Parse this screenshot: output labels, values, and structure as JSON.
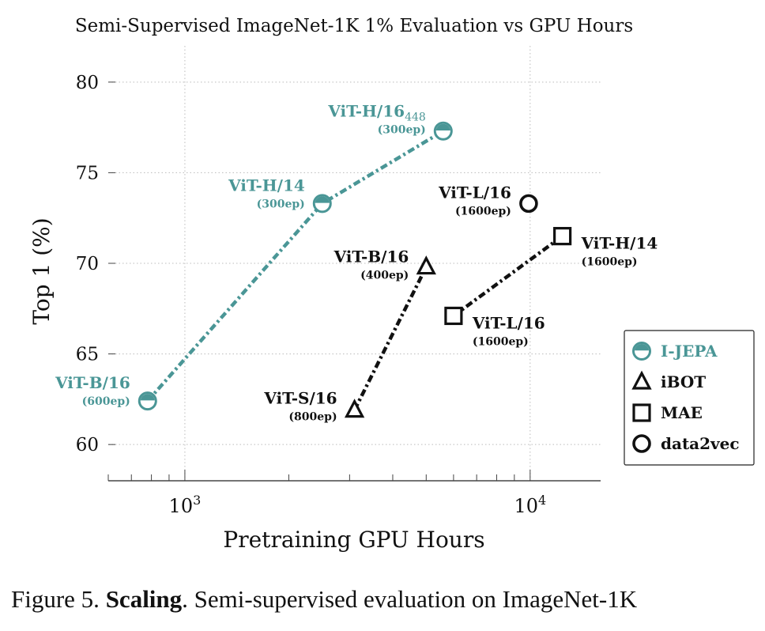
{
  "caption": {
    "figure_label": "Figure 5.",
    "bold_text": "Scaling",
    "rest_text": ". Semi-supervised evaluation on ImageNet-1K"
  },
  "chart_data": {
    "type": "scatter",
    "title": "Semi-Supervised ImageNet-1K 1% Evaluation vs GPU Hours",
    "xlabel": "Pretraining GPU Hours",
    "ylabel": "Top 1 (%)",
    "xscale": "log",
    "xlim": [
      600,
      16000
    ],
    "ylim": [
      58,
      82
    ],
    "yticks": [
      60,
      65,
      70,
      75,
      80
    ],
    "xtick_labels": [
      {
        "value": 1000,
        "base": "10",
        "exp": "3"
      },
      {
        "value": 10000,
        "base": "10",
        "exp": "4"
      }
    ],
    "grid": "dotted",
    "legend_position": "right",
    "colors": {
      "ijepa": "#4a9696",
      "baseline": "#111111"
    },
    "series": [
      {
        "name": "I-JEPA",
        "marker": "half-circle",
        "color": "#4a9696",
        "connected": true,
        "points": [
          {
            "x": 780,
            "y": 62.4,
            "label": "ViT-B/16",
            "sub": "",
            "epochs": "(600ep)",
            "anchor": "left"
          },
          {
            "x": 2500,
            "y": 73.3,
            "label": "ViT-H/14",
            "sub": "",
            "epochs": "(300ep)",
            "anchor": "left"
          },
          {
            "x": 5600,
            "y": 77.3,
            "label": "ViT-H/16",
            "sub": "448",
            "epochs": "(300ep)",
            "anchor": "left"
          }
        ]
      },
      {
        "name": "iBOT",
        "marker": "triangle",
        "color": "#111111",
        "connected": true,
        "points": [
          {
            "x": 3100,
            "y": 61.9,
            "label": "ViT-S/16",
            "sub": "",
            "epochs": "(800ep)",
            "anchor": "left"
          },
          {
            "x": 5000,
            "y": 69.8,
            "label": "ViT-B/16",
            "sub": "",
            "epochs": "(400ep)",
            "anchor": "left"
          }
        ]
      },
      {
        "name": "MAE",
        "marker": "square",
        "color": "#111111",
        "connected": true,
        "points": [
          {
            "x": 6000,
            "y": 67.1,
            "label": "ViT-L/16",
            "sub": "",
            "epochs": "(1600ep)",
            "anchor": "right"
          },
          {
            "x": 12400,
            "y": 71.5,
            "label": "ViT-H/14",
            "sub": "",
            "epochs": "(1600ep)",
            "anchor": "right"
          }
        ]
      },
      {
        "name": "data2vec",
        "marker": "circle",
        "color": "#111111",
        "connected": false,
        "points": [
          {
            "x": 9900,
            "y": 73.3,
            "label": "ViT-L/16",
            "sub": "",
            "epochs": "(1600ep)",
            "anchor": "left"
          }
        ]
      }
    ]
  }
}
